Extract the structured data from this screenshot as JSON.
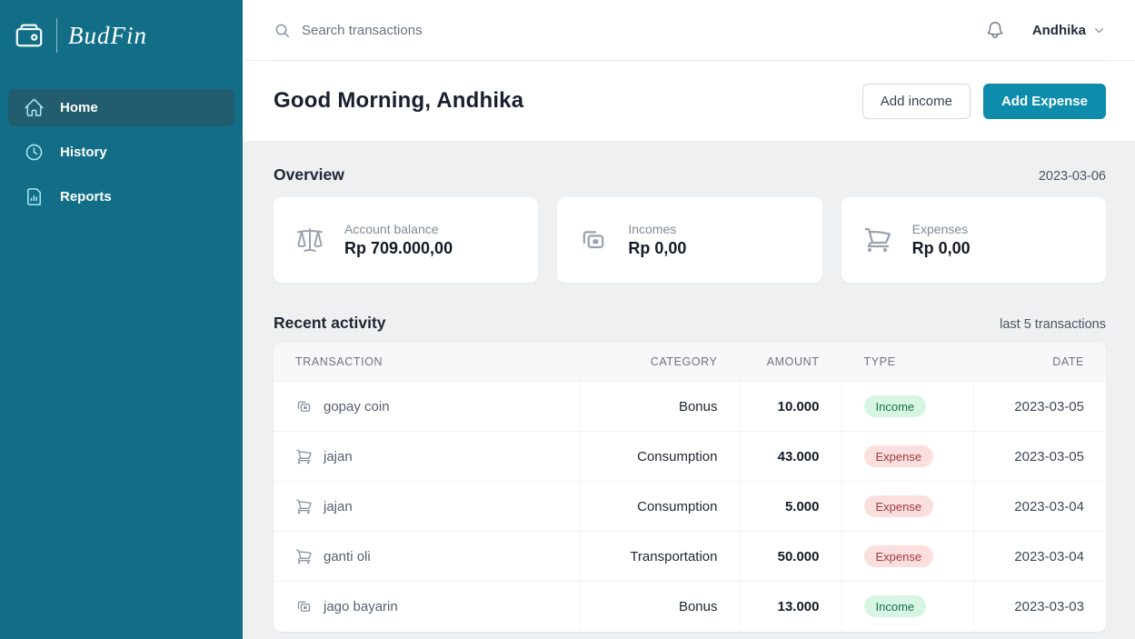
{
  "app": {
    "brand": "BudFin",
    "logo_icon": "wallet-icon"
  },
  "sidebar": {
    "items": [
      {
        "label": "Home",
        "icon": "home-icon",
        "active": true
      },
      {
        "label": "History",
        "icon": "clock-icon",
        "active": false
      },
      {
        "label": "Reports",
        "icon": "report-icon",
        "active": false
      }
    ]
  },
  "topbar": {
    "search_icon": "search-icon",
    "search_placeholder": "Search transactions",
    "bell_icon": "bell-icon",
    "user_name": "Andhika",
    "user_chevron_icon": "chevron-down-icon"
  },
  "header": {
    "greeting": "Good Morning, Andhika",
    "add_income_label": "Add income",
    "add_expense_label": "Add Expense"
  },
  "overview": {
    "title": "Overview",
    "date": "2023-03-06",
    "cards": [
      {
        "icon": "scale-icon",
        "label": "Account balance",
        "value": "Rp 709.000,00"
      },
      {
        "icon": "banknotes-icon",
        "label": "Incomes",
        "value": "Rp 0,00"
      },
      {
        "icon": "cart-icon",
        "label": "Expenses",
        "value": "Rp 0,00"
      }
    ]
  },
  "recent": {
    "title": "Recent activity",
    "subtitle": "last 5 transactions",
    "columns": [
      "Transaction",
      "Category",
      "Amount",
      "Type",
      "Date"
    ],
    "rows": [
      {
        "icon": "banknotes-icon",
        "name": "gopay coin",
        "category": "Bonus",
        "amount": "10.000",
        "type": "Income",
        "date": "2023-03-05"
      },
      {
        "icon": "cart-icon",
        "name": "jajan",
        "category": "Consumption",
        "amount": "43.000",
        "type": "Expense",
        "date": "2023-03-05"
      },
      {
        "icon": "cart-icon",
        "name": "jajan",
        "category": "Consumption",
        "amount": "5.000",
        "type": "Expense",
        "date": "2023-03-04"
      },
      {
        "icon": "cart-icon",
        "name": "ganti oli",
        "category": "Transportation",
        "amount": "50.000",
        "type": "Expense",
        "date": "2023-03-04"
      },
      {
        "icon": "banknotes-icon",
        "name": "jago bayarin",
        "category": "Bonus",
        "amount": "13.000",
        "type": "Income",
        "date": "2023-03-03"
      }
    ]
  },
  "colors": {
    "sidebar_bg": "#116e86",
    "sidebar_active_bg": "#215d6e",
    "sidebar_icon": "#a9e9f4",
    "accent_teal": "#0e8cab",
    "main_bg": "#eef0f2",
    "income_badge_bg": "#d6f5e3",
    "income_badge_text": "#15724c",
    "expense_badge_bg": "#fbdfdf",
    "expense_badge_text": "#a33a3a"
  }
}
